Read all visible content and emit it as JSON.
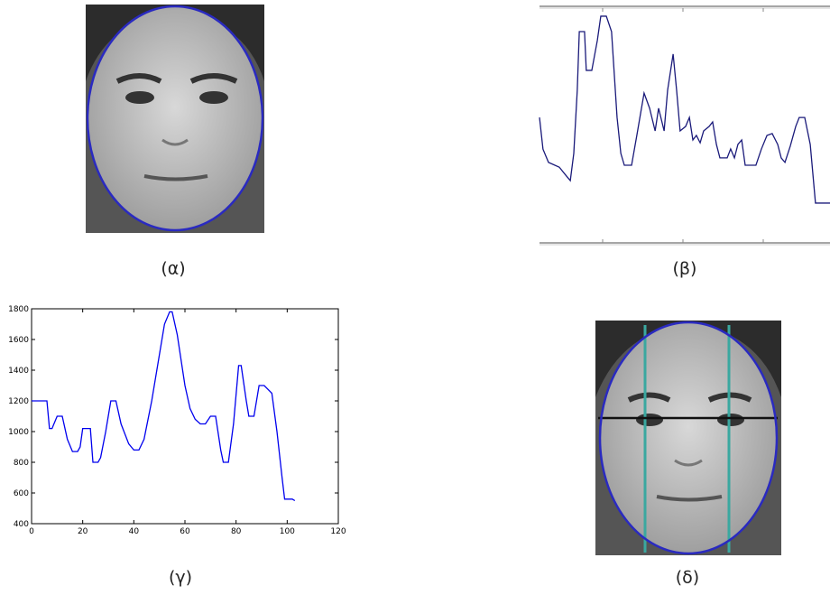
{
  "figures": {
    "alpha": {
      "caption": "(α)"
    },
    "delta": {
      "caption": "(δ)"
    }
  },
  "chart_data": [
    {
      "type": "line",
      "caption": "(β)",
      "color": "#1a1a7a",
      "xlim": [
        0,
        100
      ],
      "ylim": [
        0,
        100
      ],
      "x": [
        0,
        1.2,
        3.1,
        6.8,
        9.3,
        10.6,
        11.8,
        13,
        13.7,
        15.5,
        16.1,
        18,
        19.9,
        21.1,
        23,
        24.8,
        25.5,
        26.7,
        28,
        29.2,
        31.7,
        33.5,
        36,
        37.9,
        39.8,
        41,
        42.9,
        44.1,
        46,
        47.2,
        48.4,
        50.3,
        51.6,
        52.8,
        54,
        55.3,
        56.5,
        58.4,
        59.6,
        60.9,
        62.1,
        64.6,
        65.8,
        67.1,
        68.3,
        69.6,
        70.8,
        74.5,
        76.4,
        78.3,
        80.1,
        82,
        83.2,
        84.5,
        86.3,
        88.2,
        89.4,
        91.3,
        93.2,
        95,
        100
      ],
      "values": [
        53.4,
        40,
        34.4,
        32.4,
        28.6,
        26.7,
        38.2,
        64.9,
        89.7,
        89.7,
        73.3,
        73.3,
        85.9,
        96.2,
        96.2,
        89.7,
        76.3,
        53.4,
        38.2,
        33.2,
        33.2,
        45.8,
        63.7,
        57.3,
        47.7,
        57.3,
        47.7,
        64.9,
        80.2,
        64.9,
        47.7,
        49.6,
        53.4,
        43.9,
        45.8,
        42.7,
        47.7,
        49.6,
        51.5,
        42,
        36.3,
        36.3,
        40.1,
        36.3,
        42,
        43.9,
        33.2,
        33.2,
        40.1,
        45.8,
        46.6,
        42,
        36.3,
        34.4,
        41.2,
        49.6,
        53.4,
        53.4,
        42,
        17.2,
        17.2
      ]
    },
    {
      "type": "line",
      "caption": "(γ)",
      "color": "#0000ee",
      "xlim": [
        0,
        120
      ],
      "ylim": [
        400,
        1800
      ],
      "xticks": [
        0,
        20,
        40,
        60,
        80,
        100,
        120
      ],
      "yticks": [
        400,
        600,
        800,
        1000,
        1200,
        1400,
        1600,
        1800
      ],
      "x": [
        0,
        6,
        7,
        8,
        10,
        12,
        14,
        16,
        18,
        19,
        20,
        23,
        24,
        26,
        27,
        29,
        31,
        33,
        35,
        38,
        40,
        42,
        44,
        47,
        50,
        52,
        54,
        55,
        57,
        60,
        62,
        64,
        66,
        68,
        70,
        72,
        74,
        75,
        77,
        79,
        81,
        82,
        84,
        85,
        87,
        89,
        91,
        94,
        96,
        98,
        99,
        102,
        103
      ],
      "values": [
        1200,
        1200,
        1020,
        1020,
        1100,
        1100,
        950,
        870,
        870,
        900,
        1020,
        1020,
        800,
        800,
        830,
        1000,
        1200,
        1200,
        1050,
        920,
        880,
        880,
        950,
        1200,
        1500,
        1700,
        1780,
        1780,
        1630,
        1300,
        1150,
        1080,
        1050,
        1050,
        1100,
        1100,
        880,
        800,
        800,
        1050,
        1430,
        1430,
        1200,
        1100,
        1100,
        1300,
        1300,
        1250,
        1000,
        700,
        560,
        560,
        550
      ]
    }
  ]
}
